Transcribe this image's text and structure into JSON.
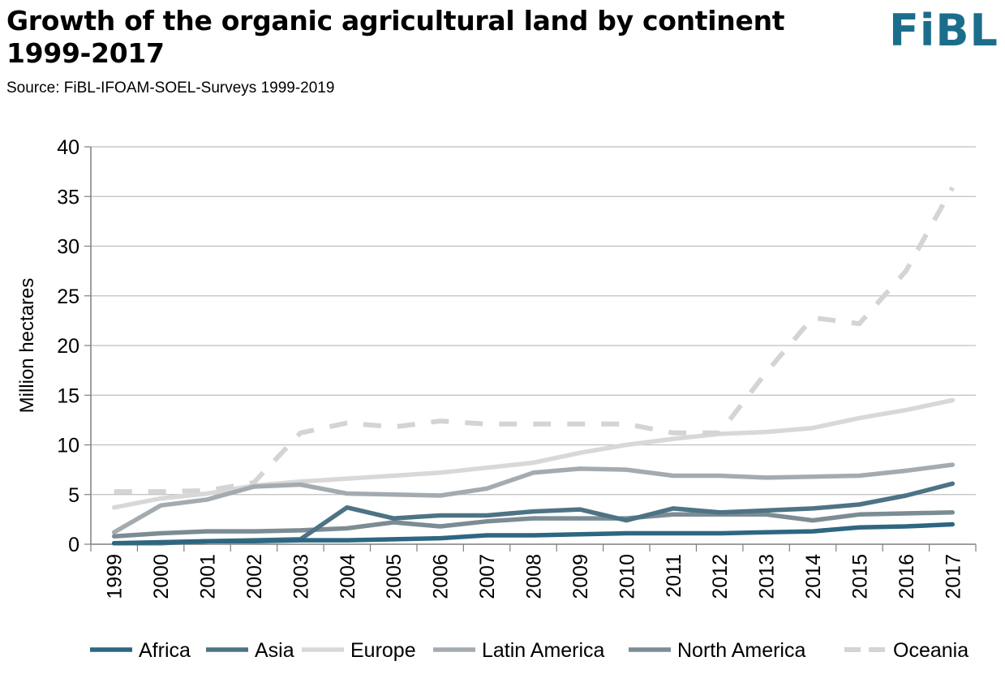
{
  "header": {
    "title_line1": "Growth of the organic agricultural land  by continent",
    "title_line2": "1999-2017",
    "source": "Source: FiBL-IFOAM-SOEL-Surveys 1999-2019",
    "logo_text": "FiBL",
    "logo_color": "#1b6e8b"
  },
  "chart_data": {
    "type": "line",
    "ylabel": "Million hectares",
    "xlabel": "",
    "ylim": [
      0,
      40
    ],
    "yticks": [
      0,
      5,
      10,
      15,
      20,
      25,
      30,
      35,
      40
    ],
    "grid": true,
    "legend_position": "bottom",
    "categories": [
      "1999",
      "2000",
      "2001",
      "2002",
      "2003",
      "2004",
      "2005",
      "2006",
      "2007",
      "2008",
      "2009",
      "2010",
      "2011",
      "2012",
      "2013",
      "2014",
      "2015",
      "2016",
      "2017"
    ],
    "series": [
      {
        "name": "Africa",
        "color": "#2d6781",
        "style": "solid",
        "values": [
          0.1,
          0.2,
          0.3,
          0.3,
          0.4,
          0.4,
          0.5,
          0.6,
          0.9,
          0.9,
          1.0,
          1.1,
          1.1,
          1.1,
          1.2,
          1.3,
          1.7,
          1.8,
          2.0
        ]
      },
      {
        "name": "Asia",
        "color": "#4d7384",
        "style": "solid",
        "values": [
          0.1,
          0.1,
          0.3,
          0.4,
          0.5,
          3.7,
          2.6,
          2.9,
          2.9,
          3.3,
          3.5,
          2.4,
          3.6,
          3.2,
          3.4,
          3.6,
          4.0,
          4.9,
          6.1
        ]
      },
      {
        "name": "Europe",
        "color": "#d8d8d8",
        "style": "solid",
        "values": [
          3.7,
          4.6,
          5.1,
          5.9,
          6.3,
          6.6,
          6.9,
          7.2,
          7.7,
          8.2,
          9.2,
          10.0,
          10.6,
          11.1,
          11.3,
          11.7,
          12.7,
          13.5,
          14.5
        ]
      },
      {
        "name": "Latin America",
        "color": "#a4abb0",
        "style": "solid",
        "values": [
          1.2,
          3.9,
          4.5,
          5.8,
          6.0,
          5.1,
          5.0,
          4.9,
          5.6,
          7.2,
          7.6,
          7.5,
          6.9,
          6.9,
          6.7,
          6.8,
          6.9,
          7.4,
          8.0
        ]
      },
      {
        "name": "North America",
        "color": "#7c8c94",
        "style": "solid",
        "values": [
          0.8,
          1.1,
          1.3,
          1.3,
          1.4,
          1.6,
          2.2,
          1.8,
          2.3,
          2.6,
          2.6,
          2.6,
          3.0,
          3.0,
          3.0,
          2.4,
          3.0,
          3.1,
          3.2
        ]
      },
      {
        "name": "Oceania",
        "color": "#d4d4d4",
        "style": "dashed",
        "values": [
          5.3,
          5.3,
          5.4,
          6.2,
          11.2,
          12.2,
          11.8,
          12.4,
          12.1,
          12.1,
          12.1,
          12.1,
          11.2,
          11.2,
          17.3,
          22.8,
          22.2,
          27.5,
          35.9
        ]
      }
    ]
  }
}
